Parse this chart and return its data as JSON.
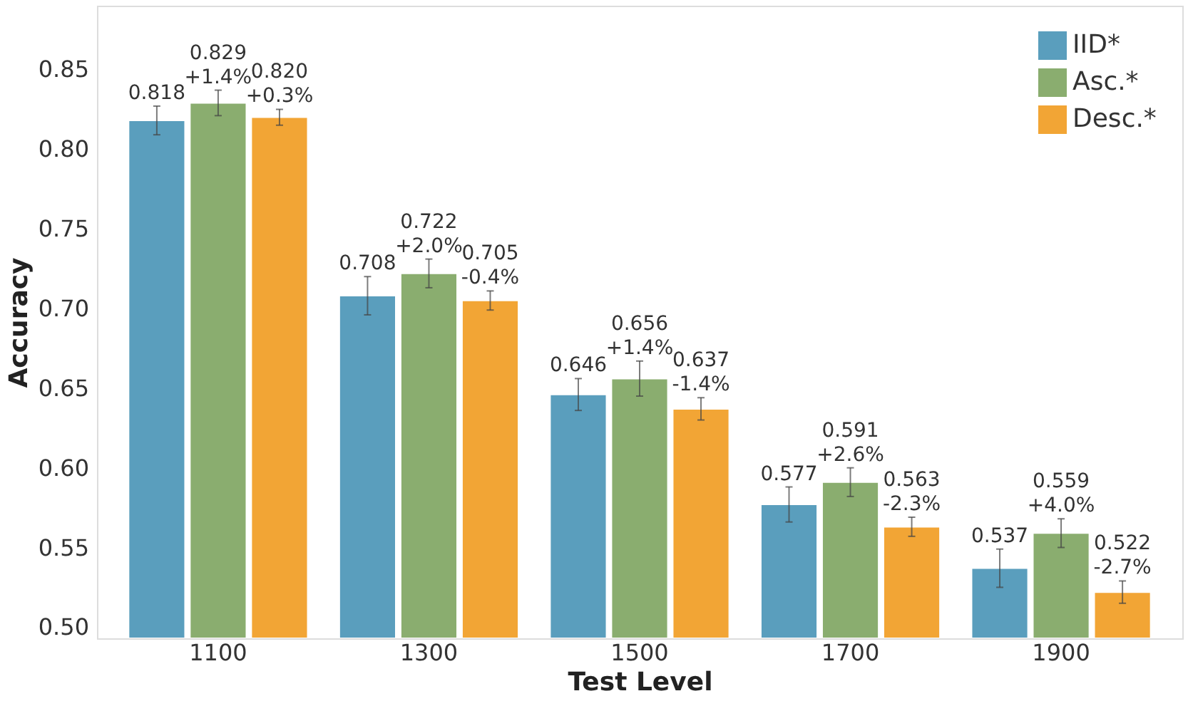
{
  "chart_data": {
    "type": "bar",
    "xlabel": "Test Level",
    "ylabel": "Accuracy",
    "categories": [
      "1100",
      "1300",
      "1500",
      "1700",
      "1900"
    ],
    "series": [
      {
        "name": "IID*",
        "color": "#5a9ebd",
        "values": [
          0.818,
          0.708,
          0.646,
          0.577,
          0.537
        ],
        "errors": [
          0.009,
          0.012,
          0.01,
          0.011,
          0.012
        ],
        "value_labels": [
          "0.818",
          "0.708",
          "0.646",
          "0.577",
          "0.537"
        ]
      },
      {
        "name": "Asc.*",
        "color": "#8aad6f",
        "values": [
          0.829,
          0.722,
          0.656,
          0.591,
          0.559
        ],
        "errors": [
          0.008,
          0.009,
          0.011,
          0.009,
          0.009
        ],
        "value_labels": [
          "0.829\n+1.4%",
          "0.722\n+2.0%",
          "0.656\n+1.4%",
          "0.591\n+2.6%",
          "0.559\n+4.0%"
        ]
      },
      {
        "name": "Desc.*",
        "color": "#f2a535",
        "values": [
          0.82,
          0.705,
          0.637,
          0.563,
          0.522
        ],
        "errors": [
          0.005,
          0.006,
          0.007,
          0.006,
          0.007
        ],
        "value_labels": [
          "0.820\n+0.3%",
          "0.705\n-0.4%",
          "0.637\n-1.4%",
          "0.563\n-2.3%",
          "0.522\n-2.7%"
        ]
      }
    ],
    "ylim": [
      0.493,
      0.89
    ],
    "yticks": [
      {
        "value": 0.5,
        "label": "0.50"
      },
      0.55,
      {
        "value": 0.6,
        "label": "0.60"
      },
      0.65,
      {
        "value": 0.7,
        "label": "0.70"
      },
      0.75,
      {
        "value": 0.8,
        "label": "0.80"
      },
      0.85
    ],
    "grid": false,
    "legend": "top right"
  }
}
